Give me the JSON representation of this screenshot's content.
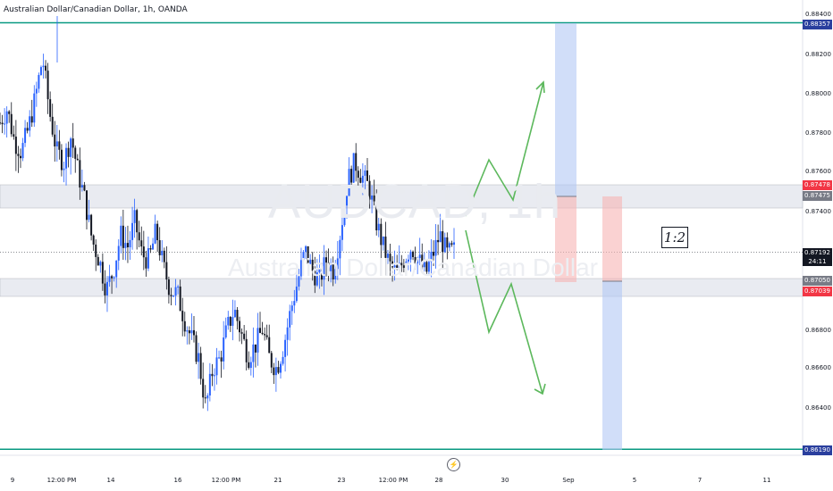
{
  "title": "Australian Dollar/Canadian Dollar, 1h, OANDA",
  "watermark": {
    "symbol": "AUDCAD, 1h",
    "name": "Australian Dollar/Canadian Dollar"
  },
  "ratio_label": "1:2",
  "y_ticks": [
    "0.88400",
    "0.88200",
    "0.88000",
    "0.87800",
    "0.87600",
    "0.87400",
    "0.86800",
    "0.86600",
    "0.86400"
  ],
  "price_labels": {
    "top_line": "0.88357",
    "zone_upper_a": "0.87478",
    "zone_upper_b": "0.87475",
    "current_price": "0.87192",
    "countdown": "24:11",
    "zone_lower_a": "0.87050",
    "zone_lower_b": "0.87039",
    "bottom_line": "0.86190"
  },
  "x_ticks": [
    "9",
    "12:00 PM",
    "14",
    "16",
    "12:00 PM",
    "21",
    "23",
    "12:00 PM",
    "28",
    "30",
    "Sep",
    "5",
    "7",
    "11"
  ],
  "colors": {
    "candle_bull": "#2962ff",
    "candle_bear": "#131722",
    "hline": "#089981",
    "zone": "#e0e3eb",
    "arrow": "#5cb85c",
    "target": "#b2c8f5",
    "stop": "#f7b4b4"
  },
  "chart_data": {
    "type": "candlestick",
    "title": "Australian Dollar/Canadian Dollar, 1h, OANDA",
    "y_axis_ticks": [
      0.884,
      0.882,
      0.88,
      0.878,
      0.876,
      0.874,
      0.868,
      0.866,
      0.864
    ],
    "x_axis_ticks": [
      "9",
      "12:00 PM",
      "14",
      "16",
      "12:00 PM",
      "21",
      "23",
      "12:00 PM",
      "28",
      "30",
      "Sep",
      "5",
      "7",
      "11"
    ],
    "horizontal_lines": [
      0.88357,
      0.8619
    ],
    "zones": [
      [
        0.87475,
        0.87478
      ],
      [
        0.87039,
        0.8705
      ]
    ],
    "current_price": 0.87192,
    "close_series_approx": [
      0.8785,
      0.8792,
      0.8776,
      0.877,
      0.8782,
      0.8798,
      0.8818,
      0.879,
      0.877,
      0.8765,
      0.8778,
      0.876,
      0.8745,
      0.8725,
      0.8715,
      0.87,
      0.871,
      0.8728,
      0.8722,
      0.8735,
      0.8718,
      0.8715,
      0.873,
      0.8712,
      0.87,
      0.8698,
      0.8685,
      0.8675,
      0.8665,
      0.864,
      0.866,
      0.8665,
      0.868,
      0.869,
      0.8678,
      0.8666,
      0.8672,
      0.868,
      0.8665,
      0.866,
      0.8672,
      0.869,
      0.8705,
      0.872,
      0.871,
      0.8705,
      0.8715,
      0.871,
      0.873,
      0.8755,
      0.8765,
      0.8758,
      0.8752,
      0.8735,
      0.8722,
      0.8712,
      0.8708,
      0.8716,
      0.8722,
      0.8715,
      0.8708,
      0.8718,
      0.8728,
      0.8718,
      0.872
    ]
  }
}
